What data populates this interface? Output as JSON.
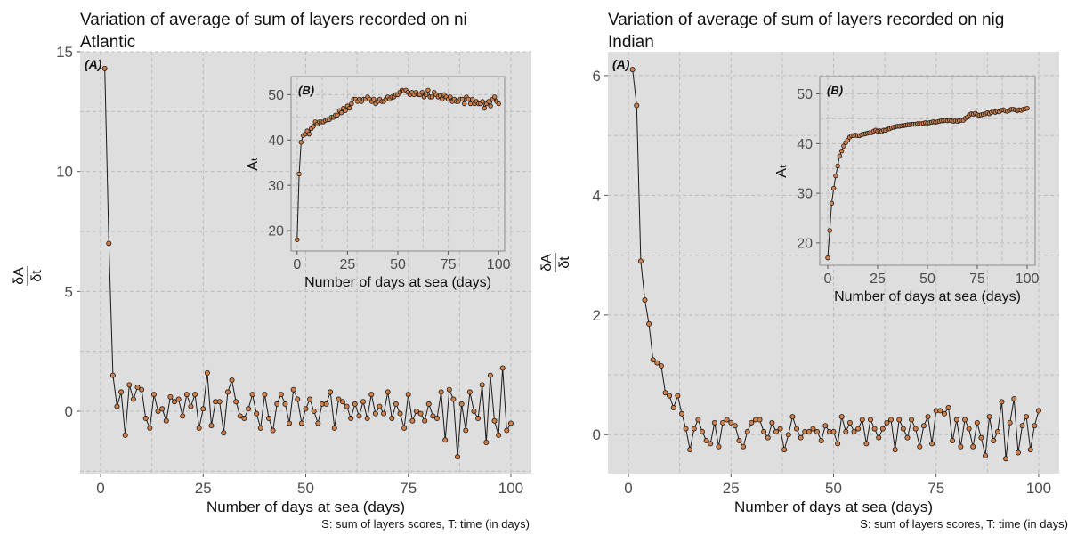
{
  "chart_data": [
    {
      "type": "line",
      "title_lines": [
        "Variation of average of sum of layers recorded on ni",
        "Atlantic"
      ],
      "ylabel_num": "δA",
      "ylabel_den": "δt",
      "xlabel": "Number of days at sea (days)",
      "caption": "S: sum of layers scores, T: time (in days)",
      "panel_label": "(A)",
      "xlim": [
        -5,
        105
      ],
      "ylim": [
        -2.6,
        15.0
      ],
      "xticks": [
        0,
        25,
        50,
        75,
        100
      ],
      "yticks": [
        0,
        5,
        10,
        15
      ],
      "grid": true,
      "point_color": "#d2804a",
      "x": [
        1,
        2,
        3,
        4,
        5,
        6,
        7,
        8,
        9,
        10,
        11,
        12,
        13,
        14,
        15,
        16,
        17,
        18,
        19,
        20,
        21,
        22,
        23,
        24,
        25,
        26,
        27,
        28,
        29,
        30,
        31,
        32,
        33,
        34,
        35,
        36,
        37,
        38,
        39,
        40,
        41,
        42,
        43,
        44,
        45,
        46,
        47,
        48,
        49,
        50,
        51,
        52,
        53,
        54,
        55,
        56,
        57,
        58,
        59,
        60,
        61,
        62,
        63,
        64,
        65,
        66,
        67,
        68,
        69,
        70,
        71,
        72,
        73,
        74,
        75,
        76,
        77,
        78,
        79,
        80,
        81,
        82,
        83,
        84,
        85,
        86,
        87,
        88,
        89,
        90,
        91,
        92,
        93,
        94,
        95,
        96,
        97,
        98,
        99,
        100
      ],
      "y": [
        14.3,
        7.0,
        1.5,
        0.2,
        0.8,
        -1.0,
        1.1,
        0.5,
        1.0,
        0.9,
        -0.3,
        -0.7,
        0.7,
        0.0,
        0.1,
        -0.4,
        0.6,
        0.4,
        0.5,
        -0.2,
        0.7,
        0.2,
        0.7,
        -0.7,
        0.1,
        1.6,
        -0.6,
        0.4,
        0.4,
        -0.9,
        0.8,
        1.3,
        0.4,
        -0.2,
        -0.3,
        0.1,
        0.7,
        -0.1,
        -0.7,
        0.7,
        -0.3,
        -0.8,
        0.3,
        0.7,
        0.3,
        -0.5,
        0.9,
        0.5,
        -0.5,
        0.1,
        0.5,
        0.0,
        -0.5,
        0.3,
        0.3,
        0.8,
        -0.7,
        0.5,
        0.4,
        0.2,
        -0.3,
        0.3,
        -0.2,
        0.4,
        -0.3,
        0.7,
        -0.1,
        0.2,
        -0.1,
        0.8,
        -0.3,
        0.3,
        -0.1,
        -0.7,
        0.7,
        -0.4,
        0.0,
        -0.1,
        -0.4,
        0.3,
        -0.2,
        -0.3,
        0.8,
        -1.2,
        0.9,
        0.5,
        -1.9,
        0.3,
        -0.8,
        0.8,
        0.0,
        -0.3,
        1.1,
        -1.3,
        1.5,
        -0.4,
        -1.0,
        1.8,
        -0.8,
        -0.5
      ],
      "inset": {
        "panel_label": "(B)",
        "ylabel": "Aₜ",
        "xlabel": "Number of days at sea (days)",
        "xlim": [
          -3,
          103
        ],
        "ylim": [
          15.5,
          54
        ],
        "xticks": [
          0,
          25,
          50,
          75,
          100
        ],
        "yticks": [
          20,
          30,
          40,
          50
        ],
        "x": [
          0,
          1,
          2,
          3,
          4,
          5,
          6,
          7,
          8,
          9,
          10,
          11,
          12,
          13,
          14,
          15,
          16,
          17,
          18,
          19,
          20,
          21,
          22,
          23,
          24,
          25,
          26,
          27,
          28,
          29,
          30,
          31,
          32,
          33,
          34,
          35,
          36,
          37,
          38,
          39,
          40,
          41,
          42,
          43,
          44,
          45,
          46,
          47,
          48,
          49,
          50,
          51,
          52,
          53,
          54,
          55,
          56,
          57,
          58,
          59,
          60,
          61,
          62,
          63,
          64,
          65,
          66,
          67,
          68,
          69,
          70,
          71,
          72,
          73,
          74,
          75,
          76,
          77,
          78,
          79,
          80,
          81,
          82,
          83,
          84,
          85,
          86,
          87,
          88,
          89,
          90,
          91,
          92,
          93,
          94,
          95,
          96,
          97,
          98,
          99,
          100
        ],
        "y": [
          18.0,
          32.5,
          39.5,
          41.0,
          41.3,
          42.0,
          41.3,
          42.5,
          43.0,
          44.0,
          43.5,
          44.0,
          44.0,
          44.0,
          44.3,
          44.5,
          44.5,
          45.0,
          45.0,
          45.5,
          45.5,
          46.5,
          46.0,
          47.0,
          46.5,
          47.5,
          47.0,
          48.0,
          49.0,
          49.0,
          48.5,
          49.0,
          48.5,
          49.0,
          49.0,
          49.5,
          49.0,
          48.5,
          49.0,
          48.0,
          48.5,
          49.0,
          48.5,
          48.5,
          49.0,
          49.5,
          49.0,
          49.5,
          49.5,
          50.0,
          50.0,
          50.5,
          51.0,
          50.8,
          51.0,
          50.5,
          50.0,
          50.5,
          50.0,
          50.5,
          50.0,
          50.0,
          50.5,
          49.5,
          50.0,
          51.0,
          49.5,
          49.5,
          50.5,
          50.0,
          49.5,
          49.8,
          49.0,
          50.0,
          49.5,
          49.0,
          49.5,
          48.5,
          49.0,
          48.5,
          48.5,
          49.0,
          49.0,
          48.0,
          49.5,
          49.0,
          48.0,
          49.0,
          48.0,
          48.5,
          48.0,
          48.0,
          48.5,
          47.0,
          48.0,
          48.5,
          47.5,
          49.0,
          49.5,
          48.5,
          48.0
        ]
      }
    },
    {
      "type": "line",
      "title_lines": [
        "Variation of average of sum of layers recorded on nig",
        "Indian"
      ],
      "ylabel_num": "δA",
      "ylabel_den": "δt",
      "xlabel": "Number of days at sea (days)",
      "caption": "S: sum of layers scores, T: time (in days)",
      "panel_label": "(A)",
      "xlim": [
        -5,
        105
      ],
      "ylim": [
        -0.65,
        6.4
      ],
      "xticks": [
        0,
        25,
        50,
        75,
        100
      ],
      "yticks": [
        0,
        2,
        4,
        6
      ],
      "grid": true,
      "point_color": "#d2804a",
      "x": [
        1,
        2,
        3,
        4,
        5,
        6,
        7,
        8,
        9,
        10,
        11,
        12,
        13,
        14,
        15,
        16,
        17,
        18,
        19,
        20,
        21,
        22,
        23,
        24,
        25,
        26,
        27,
        28,
        29,
        30,
        31,
        32,
        33,
        34,
        35,
        36,
        37,
        38,
        39,
        40,
        41,
        42,
        43,
        44,
        45,
        46,
        47,
        48,
        49,
        50,
        51,
        52,
        53,
        54,
        55,
        56,
        57,
        58,
        59,
        60,
        61,
        62,
        63,
        64,
        65,
        66,
        67,
        68,
        69,
        70,
        71,
        72,
        73,
        74,
        75,
        76,
        77,
        78,
        79,
        80,
        81,
        82,
        83,
        84,
        85,
        86,
        87,
        88,
        89,
        90,
        91,
        92,
        93,
        94,
        95,
        96,
        97,
        98,
        99,
        100
      ],
      "y": [
        6.1,
        5.5,
        2.9,
        2.25,
        1.85,
        1.25,
        1.2,
        1.15,
        0.7,
        0.65,
        0.45,
        0.65,
        0.35,
        0.1,
        -0.25,
        0.1,
        0.25,
        0.05,
        -0.1,
        -0.15,
        0.2,
        -0.2,
        0.2,
        0.25,
        0.2,
        0.15,
        -0.1,
        -0.2,
        0.05,
        0.2,
        0.25,
        0.25,
        0.05,
        -0.05,
        0.2,
        0.05,
        0.1,
        -0.25,
        0.0,
        0.3,
        0.1,
        -0.05,
        0.05,
        0.05,
        0.1,
        0.05,
        -0.1,
        0.15,
        0.05,
        0.05,
        -0.15,
        0.3,
        0.05,
        0.2,
        0.05,
        0.1,
        0.25,
        -0.15,
        0.25,
        0.1,
        -0.05,
        0.1,
        0.2,
        0.25,
        -0.25,
        0.25,
        0.1,
        -0.05,
        0.25,
        0.1,
        -0.2,
        0.15,
        0.3,
        -0.15,
        0.4,
        0.4,
        0.35,
        0.45,
        -0.1,
        0.25,
        -0.2,
        0.25,
        0.1,
        -0.2,
        0.2,
        -0.05,
        -0.35,
        0.3,
        -0.1,
        0.05,
        0.55,
        -0.4,
        0.2,
        0.6,
        -0.3,
        0.15,
        0.3,
        -0.25,
        0.15,
        0.4
      ],
      "inset": {
        "panel_label": "(B)",
        "ylabel": "Aₜ",
        "xlabel": "Number of days at sea (days)",
        "xlim": [
          -4,
          104
        ],
        "ylim": [
          15.5,
          53.5
        ],
        "xticks": [
          0,
          25,
          50,
          75,
          100
        ],
        "yticks": [
          20,
          30,
          40,
          50
        ],
        "x": [
          0,
          1,
          2,
          3,
          4,
          5,
          6,
          7,
          8,
          9,
          10,
          11,
          12,
          13,
          14,
          15,
          16,
          17,
          18,
          19,
          20,
          21,
          22,
          23,
          24,
          25,
          26,
          27,
          28,
          29,
          30,
          31,
          32,
          33,
          34,
          35,
          36,
          37,
          38,
          39,
          40,
          41,
          42,
          43,
          44,
          45,
          46,
          47,
          48,
          49,
          50,
          51,
          52,
          53,
          54,
          55,
          56,
          57,
          58,
          59,
          60,
          61,
          62,
          63,
          64,
          65,
          66,
          67,
          68,
          69,
          70,
          71,
          72,
          73,
          74,
          75,
          76,
          77,
          78,
          79,
          80,
          81,
          82,
          83,
          84,
          85,
          86,
          87,
          88,
          89,
          90,
          91,
          92,
          93,
          94,
          95,
          96,
          97,
          98,
          99,
          100
        ],
        "y": [
          17.0,
          22.5,
          28.0,
          31.0,
          33.5,
          35.5,
          37.5,
          38.5,
          39.5,
          40.2,
          40.7,
          41.3,
          41.6,
          41.6,
          41.7,
          41.6,
          41.6,
          41.8,
          41.9,
          42.0,
          42.1,
          42.2,
          42.2,
          42.5,
          42.7,
          42.5,
          42.6,
          42.4,
          42.7,
          42.7,
          42.9,
          43.0,
          43.2,
          43.3,
          43.4,
          43.5,
          43.5,
          43.6,
          43.6,
          43.7,
          43.8,
          43.8,
          43.9,
          43.9,
          43.9,
          44.0,
          44.0,
          44.0,
          44.1,
          44.2,
          44.1,
          44.2,
          44.3,
          44.4,
          44.3,
          44.4,
          44.5,
          44.6,
          44.6,
          44.7,
          44.6,
          44.7,
          44.6,
          44.5,
          44.6,
          44.5,
          44.6,
          44.7,
          44.7,
          45.1,
          45.3,
          45.8,
          46.0,
          45.9,
          46.1,
          45.8,
          45.7,
          45.8,
          45.9,
          46.0,
          46.2,
          46.0,
          46.3,
          46.5,
          46.3,
          46.5,
          46.4,
          46.7,
          46.8,
          46.6,
          46.5,
          46.7,
          46.9,
          46.9,
          46.8,
          46.6,
          46.8,
          46.7,
          46.9,
          47.0,
          47.1
        ]
      }
    }
  ]
}
